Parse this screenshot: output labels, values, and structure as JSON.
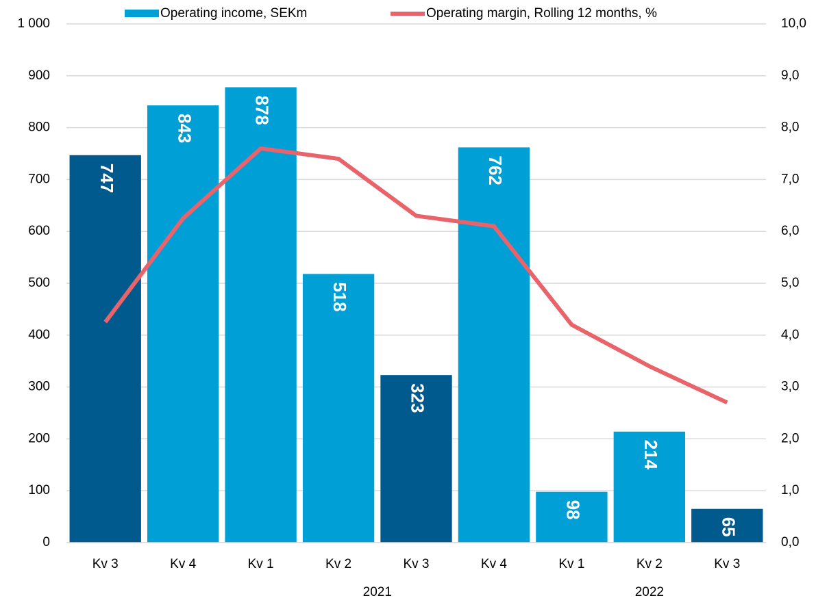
{
  "chart_data": {
    "type": "bar_line",
    "categories": [
      "Kv 3",
      "Kv 4",
      "Kv 1",
      "Kv 2",
      "Kv 3",
      "Kv 4",
      "Kv 1",
      "Kv 2",
      "Kv 3"
    ],
    "category_groups": [
      {
        "label": "2021",
        "first": 2,
        "last": 5
      },
      {
        "label": "2022",
        "first": 6,
        "last": 8
      }
    ],
    "series": [
      {
        "name": "Operating income, SEKm",
        "type": "bar",
        "color": "#00a0d6",
        "colors": [
          "#005a8e",
          "#00a0d6",
          "#00a0d6",
          "#00a0d6",
          "#005a8e",
          "#00a0d6",
          "#00a0d6",
          "#00a0d6",
          "#005a8e"
        ],
        "values": [
          747,
          843,
          878,
          518,
          323,
          762,
          98,
          214,
          65
        ]
      },
      {
        "name": "Operating margin, Rolling 12 months, %",
        "type": "line",
        "color": "#e8636a",
        "axis": "y2",
        "values": [
          4.25,
          6.25,
          7.6,
          7.4,
          6.3,
          6.1,
          4.2,
          3.4,
          2.7
        ]
      }
    ],
    "ylim": [
      0,
      1000
    ],
    "yticks": [
      0,
      100,
      200,
      300,
      400,
      500,
      600,
      700,
      800,
      900,
      {
        "value": 1000,
        "label": "1 000"
      }
    ],
    "y2lim": [
      0,
      10
    ],
    "y2ticks": [
      {
        "value": 0,
        "label": "0,0"
      },
      {
        "value": 1,
        "label": "1,0"
      },
      {
        "value": 2,
        "label": "2,0"
      },
      {
        "value": 3,
        "label": "3,0"
      },
      {
        "value": 4,
        "label": "4,0"
      },
      {
        "value": 5,
        "label": "5,0"
      },
      {
        "value": 6,
        "label": "6,0"
      },
      {
        "value": 7,
        "label": "7,0"
      },
      {
        "value": 8,
        "label": "8,0"
      },
      {
        "value": 9,
        "label": "9,0"
      },
      {
        "value": 10,
        "label": "10,0"
      }
    ],
    "grid": true,
    "legend": "top"
  }
}
